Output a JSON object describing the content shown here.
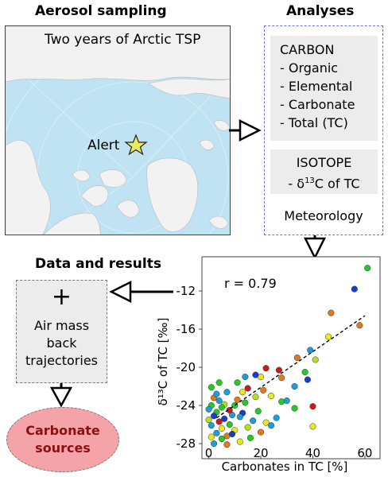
{
  "headings": {
    "aerosol_sampling": "Aerosol sampling",
    "analyses": "Analyses",
    "data_results": "Data and results"
  },
  "map": {
    "title": "Two years of Arctic TSP",
    "station": "Alert"
  },
  "analyses": {
    "carbon_title": "CARBON",
    "carbon_items": [
      "- Organic",
      "- Elemental",
      "- Carbonate",
      "- Total (TC)"
    ],
    "isotope_title": "ISOTOPE",
    "isotope_prefix": "- δ",
    "isotope_sup": "13",
    "isotope_suffix": "C of TC",
    "meteorology": "Meteorology"
  },
  "data_box": {
    "plus": "+",
    "lines": [
      "Air mass",
      "back",
      "trajectories"
    ]
  },
  "outcome": {
    "lines": [
      "Carbonate",
      "sources"
    ]
  },
  "chart_data": {
    "type": "scatter",
    "xlabel": "Carbonates in TC [%]",
    "ylabel": "δ¹³C of TC [‰]",
    "annotation": "r = 0.79",
    "xlim": [
      -2,
      64
    ],
    "ylim": [
      -29,
      -9
    ],
    "xticks": [
      0,
      20,
      40,
      60
    ],
    "yticks": [
      -28,
      -24,
      -20,
      -16,
      -12
    ],
    "trend_line": {
      "x": [
        3,
        60
      ],
      "y": [
        -25.3,
        -14.6
      ]
    },
    "points": [
      {
        "x": 61,
        "y": -9.6,
        "color": "#22cc22"
      },
      {
        "x": 56,
        "y": -11.8,
        "color": "#1a3ccc"
      },
      {
        "x": 58,
        "y": -15.6,
        "color": "#e07a1a"
      },
      {
        "x": 47,
        "y": -14.3,
        "color": "#e07a1a"
      },
      {
        "x": 46,
        "y": -16.8,
        "color": "#e8e820"
      },
      {
        "x": 39,
        "y": -18.2,
        "color": "#1a9ee0"
      },
      {
        "x": 41,
        "y": -19.2,
        "color": "#b0e020"
      },
      {
        "x": 37,
        "y": -20.5,
        "color": "#22cc22"
      },
      {
        "x": 38,
        "y": -21.3,
        "color": "#1a3ccc"
      },
      {
        "x": 34,
        "y": -19.0,
        "color": "#e07a1a"
      },
      {
        "x": 33,
        "y": -22.0,
        "color": "#1a9ee0"
      },
      {
        "x": 33,
        "y": -24.3,
        "color": "#22cc22"
      },
      {
        "x": 40,
        "y": -24.1,
        "color": "#cc1a1a"
      },
      {
        "x": 40,
        "y": -26.2,
        "color": "#e8e820"
      },
      {
        "x": 27,
        "y": -20.3,
        "color": "#cc1a1a"
      },
      {
        "x": 28,
        "y": -21.1,
        "color": "#e07a1a"
      },
      {
        "x": 28,
        "y": -23.6,
        "color": "#22cc22"
      },
      {
        "x": 26,
        "y": -25.3,
        "color": "#1a9ee0"
      },
      {
        "x": 22,
        "y": -20.1,
        "color": "#cc1a1a"
      },
      {
        "x": 20,
        "y": -21.0,
        "color": "#e8e820"
      },
      {
        "x": 18,
        "y": -20.8,
        "color": "#1a3ccc"
      },
      {
        "x": 21,
        "y": -22.4,
        "color": "#e07a1a"
      },
      {
        "x": 18,
        "y": -23.1,
        "color": "#b0e020"
      },
      {
        "x": 19,
        "y": -24.6,
        "color": "#22cc22"
      },
      {
        "x": 17,
        "y": -25.6,
        "color": "#1a9ee0"
      },
      {
        "x": 20,
        "y": -26.8,
        "color": "#e07a1a"
      },
      {
        "x": 15,
        "y": -22.2,
        "color": "#cc1a1a"
      },
      {
        "x": 14,
        "y": -23.7,
        "color": "#22cc22"
      },
      {
        "x": 13,
        "y": -24.8,
        "color": "#1a3ccc"
      },
      {
        "x": 15,
        "y": -26.3,
        "color": "#b0e020"
      },
      {
        "x": 12,
        "y": -25.2,
        "color": "#1a9ee0"
      },
      {
        "x": 11,
        "y": -23.4,
        "color": "#e07a1a"
      },
      {
        "x": 10,
        "y": -24.0,
        "color": "#22cc22"
      },
      {
        "x": 10,
        "y": -26.6,
        "color": "#e8e820"
      },
      {
        "x": 9,
        "y": -25.0,
        "color": "#1a9ee0"
      },
      {
        "x": 8,
        "y": -24.5,
        "color": "#cc1a1a"
      },
      {
        "x": 8,
        "y": -26.0,
        "color": "#22cc22"
      },
      {
        "x": 7,
        "y": -22.6,
        "color": "#1a9ee0"
      },
      {
        "x": 7,
        "y": -27.2,
        "color": "#e07a1a"
      },
      {
        "x": 6,
        "y": -23.9,
        "color": "#b0e020"
      },
      {
        "x": 6,
        "y": -25.4,
        "color": "#1a3ccc"
      },
      {
        "x": 5,
        "y": -24.2,
        "color": "#22cc22"
      },
      {
        "x": 5,
        "y": -26.4,
        "color": "#e8e820"
      },
      {
        "x": 4,
        "y": -23.5,
        "color": "#1a9ee0"
      },
      {
        "x": 4,
        "y": -25.7,
        "color": "#cc1a1a"
      },
      {
        "x": 3,
        "y": -24.7,
        "color": "#22cc22"
      },
      {
        "x": 3,
        "y": -26.9,
        "color": "#1a9ee0"
      },
      {
        "x": 2,
        "y": -23.2,
        "color": "#e07a1a"
      },
      {
        "x": 2,
        "y": -25.1,
        "color": "#1a3ccc"
      },
      {
        "x": 1,
        "y": -24.0,
        "color": "#22cc22"
      },
      {
        "x": 1,
        "y": -26.1,
        "color": "#1a9ee0"
      },
      {
        "x": 1,
        "y": -22.1,
        "color": "#22cc22"
      },
      {
        "x": 0,
        "y": -25.5,
        "color": "#b0e020"
      },
      {
        "x": 0,
        "y": -24.4,
        "color": "#1a9ee0"
      },
      {
        "x": 1,
        "y": -27.3,
        "color": "#e8e820"
      },
      {
        "x": 3,
        "y": -22.8,
        "color": "#1a9ee0"
      },
      {
        "x": 5,
        "y": -27.5,
        "color": "#22cc22"
      },
      {
        "x": 9,
        "y": -27.0,
        "color": "#1a3ccc"
      },
      {
        "x": 12,
        "y": -27.8,
        "color": "#e8e820"
      },
      {
        "x": 16,
        "y": -27.4,
        "color": "#22cc22"
      },
      {
        "x": 24,
        "y": -26.1,
        "color": "#1a9ee0"
      },
      {
        "x": 11,
        "y": -21.6,
        "color": "#22cc22"
      },
      {
        "x": 14,
        "y": -21.0,
        "color": "#1a9ee0"
      },
      {
        "x": 24,
        "y": -23.0,
        "color": "#e8e820"
      },
      {
        "x": 30,
        "y": -23.5,
        "color": "#1a9ee0"
      },
      {
        "x": 2,
        "y": -28.0,
        "color": "#1a9ee0"
      },
      {
        "x": 7,
        "y": -28.1,
        "color": "#e07a1a"
      },
      {
        "x": 13,
        "y": -22.6,
        "color": "#e8e820"
      },
      {
        "x": 22,
        "y": -25.8,
        "color": "#e8e820"
      },
      {
        "x": 4,
        "y": -21.6,
        "color": "#22cc22"
      }
    ]
  }
}
